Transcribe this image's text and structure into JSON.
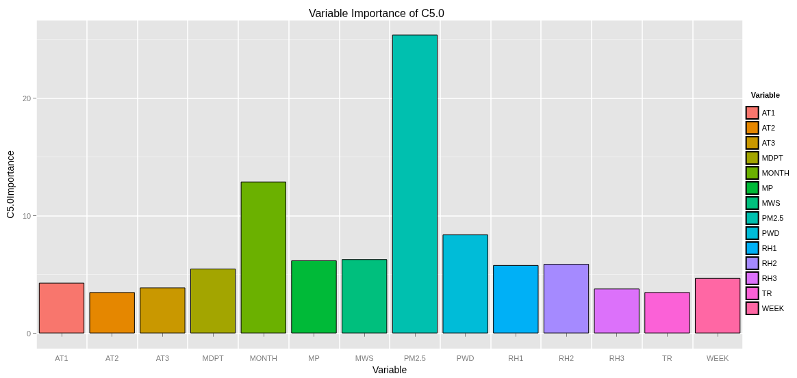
{
  "chart_data": {
    "type": "bar",
    "title": "Variable Importance of C5.0",
    "xlabel": "Variable",
    "ylabel": "C5.0Importance",
    "legend_title": "Variable",
    "categories": [
      "AT1",
      "AT2",
      "AT3",
      "MDPT",
      "MONTH",
      "MP",
      "MWS",
      "PM2.5",
      "PWD",
      "RH1",
      "RH2",
      "RH3",
      "TR",
      "WEEK"
    ],
    "series": [
      {
        "name": "AT1",
        "color": "#f8766d",
        "values": [
          4.3,
          null,
          null,
          null,
          null,
          null,
          null,
          null,
          null,
          null,
          null,
          null,
          null,
          null
        ]
      },
      {
        "name": "AT2",
        "color": "#e58700",
        "values": [
          null,
          3.5,
          null,
          null,
          null,
          null,
          null,
          null,
          null,
          null,
          null,
          null,
          null,
          null
        ]
      },
      {
        "name": "AT3",
        "color": "#c99800",
        "values": [
          null,
          null,
          3.9,
          null,
          null,
          null,
          null,
          null,
          null,
          null,
          null,
          null,
          null,
          null
        ]
      },
      {
        "name": "MDPT",
        "color": "#a3a500",
        "values": [
          null,
          null,
          null,
          5.5,
          null,
          null,
          null,
          null,
          null,
          null,
          null,
          null,
          null,
          null
        ]
      },
      {
        "name": "MONTH",
        "color": "#6bb100",
        "values": [
          null,
          null,
          null,
          null,
          12.9,
          null,
          null,
          null,
          null,
          null,
          null,
          null,
          null,
          null
        ]
      },
      {
        "name": "MP",
        "color": "#00ba38",
        "values": [
          null,
          null,
          null,
          null,
          null,
          6.2,
          null,
          null,
          null,
          null,
          null,
          null,
          null,
          null
        ]
      },
      {
        "name": "MWS",
        "color": "#00bf7d",
        "values": [
          null,
          null,
          null,
          null,
          null,
          null,
          6.3,
          null,
          null,
          null,
          null,
          null,
          null,
          null
        ]
      },
      {
        "name": "PM2.5",
        "color": "#00c0af",
        "values": [
          null,
          null,
          null,
          null,
          null,
          null,
          null,
          25.4,
          null,
          null,
          null,
          null,
          null,
          null
        ]
      },
      {
        "name": "PWD",
        "color": "#00bcd8",
        "values": [
          null,
          null,
          null,
          null,
          null,
          null,
          null,
          null,
          8.4,
          null,
          null,
          null,
          null,
          null
        ]
      },
      {
        "name": "RH1",
        "color": "#00b0f6",
        "values": [
          null,
          null,
          null,
          null,
          null,
          null,
          null,
          null,
          null,
          5.8,
          null,
          null,
          null,
          null
        ]
      },
      {
        "name": "RH2",
        "color": "#a58aff",
        "values": [
          null,
          null,
          null,
          null,
          null,
          null,
          null,
          null,
          null,
          null,
          5.9,
          null,
          null,
          null
        ]
      },
      {
        "name": "RH3",
        "color": "#dc71fa",
        "values": [
          null,
          null,
          null,
          null,
          null,
          null,
          null,
          null,
          null,
          null,
          null,
          3.8,
          null,
          null
        ]
      },
      {
        "name": "TR",
        "color": "#fb61d7",
        "values": [
          null,
          null,
          null,
          null,
          null,
          null,
          null,
          null,
          null,
          null,
          null,
          null,
          3.5,
          null
        ]
      },
      {
        "name": "WEEK",
        "color": "#ff67a4",
        "values": [
          null,
          null,
          null,
          null,
          null,
          null,
          null,
          null,
          null,
          null,
          null,
          null,
          null,
          4.7
        ]
      }
    ],
    "stacked": true,
    "ylim": [
      -1.3,
      26.6
    ],
    "yticks": [
      0,
      10,
      20
    ],
    "grid": true,
    "legend": "right"
  }
}
